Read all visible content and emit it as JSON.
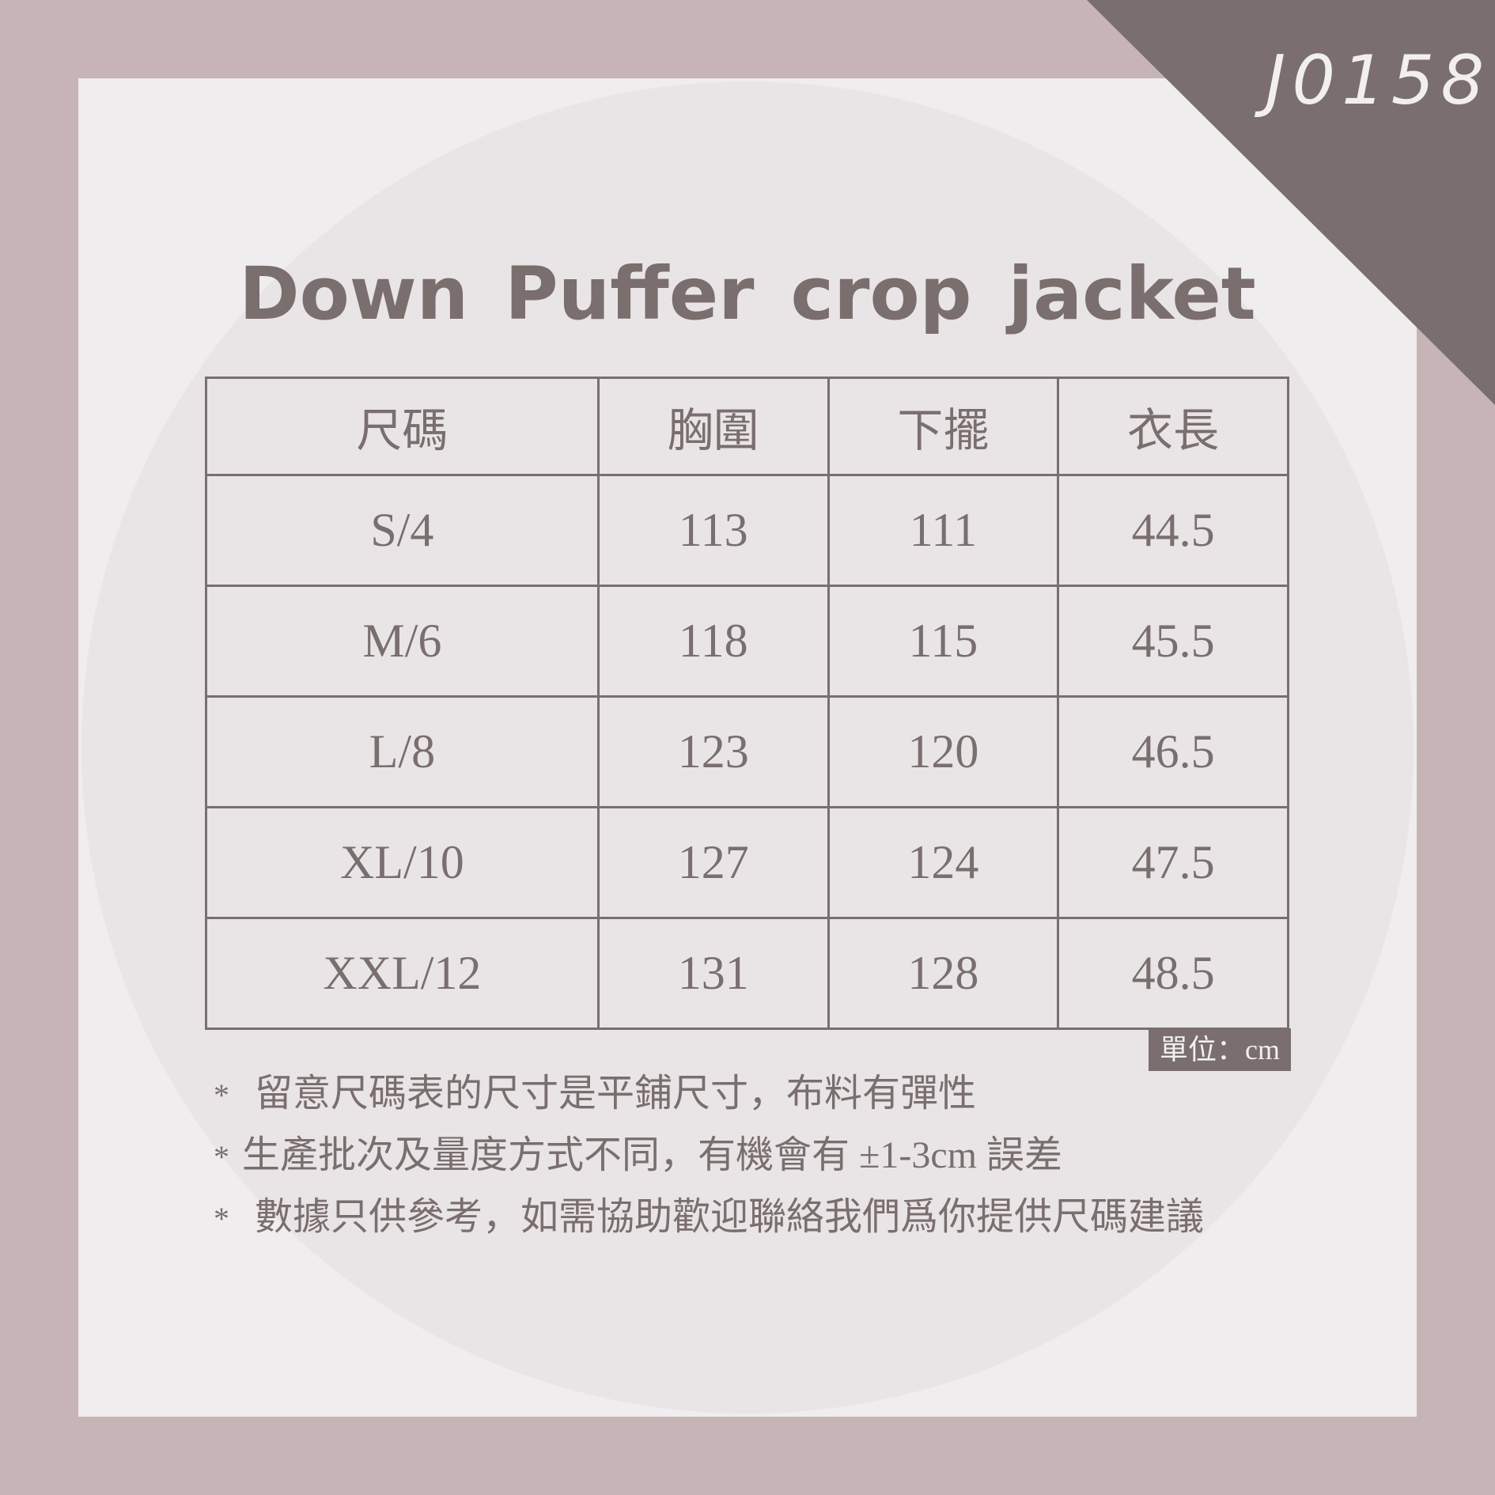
{
  "product_code": "J0158",
  "title": "Down Puffer crop jacket",
  "table": {
    "headers": [
      "尺碼",
      "胸圍",
      "下擺",
      "衣長"
    ],
    "rows": [
      [
        "S/4",
        "113",
        "111",
        "44.5"
      ],
      [
        "M/6",
        "118",
        "115",
        "45.5"
      ],
      [
        "L/8",
        "123",
        "120",
        "46.5"
      ],
      [
        "XL/10",
        "127",
        "124",
        "47.5"
      ],
      [
        "XXL/12",
        "131",
        "128",
        "48.5"
      ]
    ]
  },
  "unit_label": "單位：cm",
  "notes": [
    {
      "bullet": "*",
      "text": "留意尺碼表的尺寸是平鋪尺寸，布料有彈性"
    },
    {
      "bullet": "*",
      "text": "生產批次及量度方式不同，有機會有 ±1-3cm 誤差"
    },
    {
      "bullet": "*",
      "text": "數據只供參考，如需協助歡迎聯絡我們爲你提供尺碼建議"
    }
  ],
  "colors": {
    "background": "#c7b4b6",
    "panel": "#efedee",
    "accent": "#7a6e6e"
  }
}
